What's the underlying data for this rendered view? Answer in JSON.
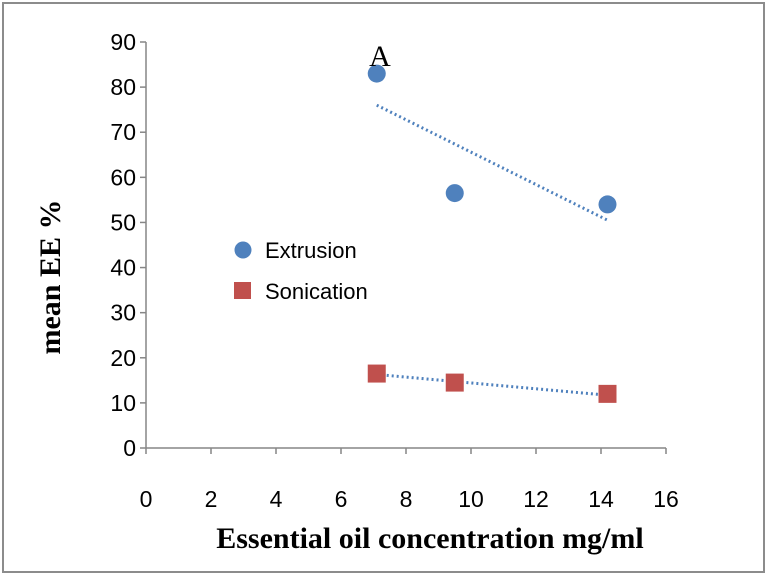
{
  "chart_data": {
    "type": "scatter",
    "title": "",
    "panel_label": "A",
    "xlabel": "Essential oil concentration mg/ml",
    "ylabel": "mean EE %",
    "xlim": [
      0,
      16
    ],
    "ylim": [
      0,
      90
    ],
    "x_ticks": [
      0,
      2,
      4,
      6,
      8,
      10,
      12,
      14,
      16
    ],
    "y_ticks": [
      0,
      10,
      20,
      30,
      40,
      50,
      60,
      70,
      80,
      90
    ],
    "grid": false,
    "legend_position": "center-left",
    "series": [
      {
        "name": "Extrusion",
        "marker": "circle",
        "color": "#4F81BD",
        "points": [
          {
            "x": 7.1,
            "y": 83
          },
          {
            "x": 9.5,
            "y": 56.5
          },
          {
            "x": 14.2,
            "y": 54
          }
        ],
        "trendline": {
          "style": "dotted",
          "color": "#4F81BD",
          "x": [
            7.1,
            14.2
          ],
          "y": [
            76,
            50.5
          ]
        }
      },
      {
        "name": "Sonication",
        "marker": "square",
        "color": "#C0504D",
        "points": [
          {
            "x": 7.1,
            "y": 16.5
          },
          {
            "x": 9.5,
            "y": 14.5
          },
          {
            "x": 14.2,
            "y": 12
          }
        ],
        "trendline": {
          "style": "dotted",
          "color": "#4F81BD",
          "x": [
            7.1,
            14.2
          ],
          "y": [
            16.3,
            11.7
          ]
        }
      }
    ]
  }
}
